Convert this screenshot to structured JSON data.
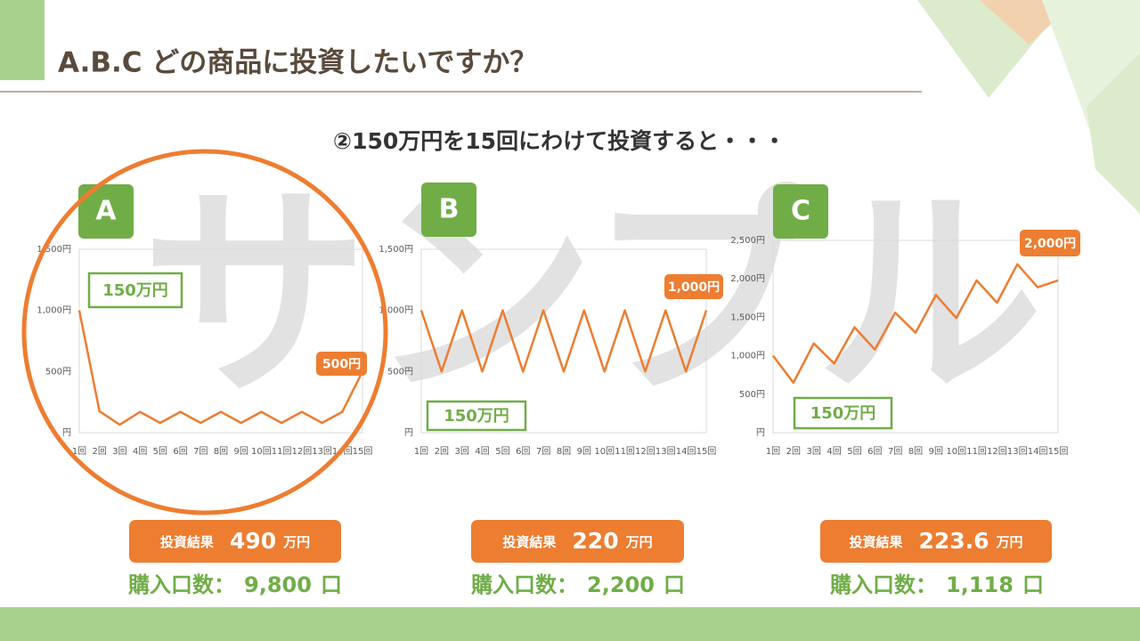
{
  "slide": {
    "title": "A.B.C どの商品に投資したいですか？",
    "subtitle": "②150万円を15回にわけて投資すると・・・",
    "watermark": "サンプル"
  },
  "chart_data": [
    {
      "type": "line",
      "badge": "A",
      "categories": [
        "1回",
        "2回",
        "3回",
        "4回",
        "5回",
        "6回",
        "7回",
        "8回",
        "9回",
        "10回",
        "11回",
        "12回",
        "13回",
        "14回",
        "15回"
      ],
      "values": [
        1000,
        175,
        65,
        170,
        80,
        170,
        80,
        170,
        80,
        170,
        80,
        170,
        80,
        170,
        500
      ],
      "color": "#ed7d31",
      "ylim": [
        0,
        1500
      ],
      "yticks": [
        {
          "value": 0,
          "label": "円"
        },
        {
          "value": 500,
          "label": "500円"
        },
        {
          "value": 1000,
          "label": "1,000円"
        },
        {
          "value": 1500,
          "label": "1,500円"
        }
      ],
      "grid": false,
      "annotations": [
        "150万円",
        "500円"
      ]
    },
    {
      "type": "line",
      "badge": "B",
      "categories": [
        "1回",
        "2回",
        "3回",
        "4回",
        "5回",
        "6回",
        "7回",
        "8回",
        "9回",
        "10回",
        "11回",
        "12回",
        "13回",
        "14回",
        "15回"
      ],
      "values": [
        1000,
        500,
        1000,
        500,
        1000,
        500,
        1000,
        500,
        1000,
        500,
        1000,
        500,
        1000,
        500,
        1000
      ],
      "color": "#ed7d31",
      "ylim": [
        0,
        1500
      ],
      "yticks": [
        {
          "value": 0,
          "label": "円"
        },
        {
          "value": 500,
          "label": "500円"
        },
        {
          "value": 1000,
          "label": "1,000円"
        },
        {
          "value": 1500,
          "label": "1,500円"
        }
      ],
      "grid": false,
      "annotations": [
        "150万円",
        "1,000円"
      ]
    },
    {
      "type": "line",
      "badge": "C",
      "categories": [
        "1回",
        "2回",
        "3回",
        "4回",
        "5回",
        "6回",
        "7回",
        "8回",
        "9回",
        "10回",
        "11回",
        "12回",
        "13回",
        "14回",
        "15回"
      ],
      "values": [
        1000,
        650,
        1160,
        900,
        1370,
        1080,
        1560,
        1300,
        1790,
        1490,
        1980,
        1690,
        2190,
        1890,
        1980
      ],
      "color": "#ed7d31",
      "ylim": [
        0,
        2500
      ],
      "yticks": [
        {
          "value": 0,
          "label": "円"
        },
        {
          "value": 500,
          "label": "500円"
        },
        {
          "value": 1000,
          "label": "1,000円"
        },
        {
          "value": 1500,
          "label": "1,500円"
        },
        {
          "value": 2000,
          "label": "2,000円"
        },
        {
          "value": 2500,
          "label": "2,500円"
        }
      ],
      "grid": false,
      "annotations": [
        "150万円",
        "2,000円"
      ]
    }
  ],
  "panels": [
    {
      "result_label": "投資結果",
      "result_value": "490",
      "result_unit": "万円",
      "units_label": "購入口数：",
      "units_value": "9,800",
      "units_unit": "口"
    },
    {
      "result_label": "投資結果",
      "result_value": "220",
      "result_unit": "万円",
      "units_label": "購入口数：",
      "units_value": "2,200",
      "units_unit": "口"
    },
    {
      "result_label": "投資結果",
      "result_value": "223.6",
      "result_unit": "万円",
      "units_label": "購入口数：",
      "units_value": "1,118",
      "units_unit": "口"
    }
  ]
}
